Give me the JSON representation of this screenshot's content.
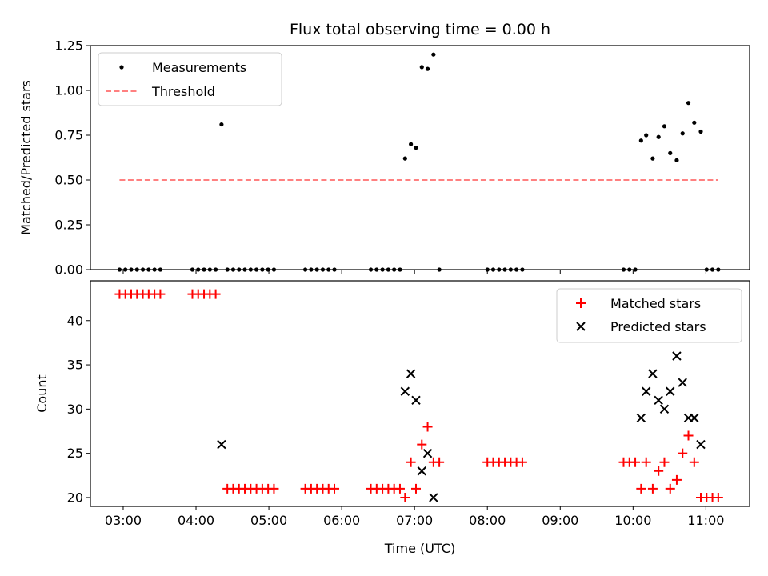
{
  "chart_data": [
    {
      "type": "scatter",
      "title": "Flux total observing time = 0.00 h",
      "xlabel": "",
      "ylabel": "Matched/Predicted stars",
      "xlim": [
        2.55,
        11.6
      ],
      "ylim": [
        0,
        1.25
      ],
      "yticks": [
        0.0,
        0.25,
        0.5,
        0.75,
        1.0,
        1.25
      ],
      "ytick_labels": [
        "0.00",
        "0.25",
        "0.50",
        "0.75",
        "1.00",
        "1.25"
      ],
      "xticks": [
        3,
        4,
        5,
        6,
        7,
        8,
        9,
        10,
        11
      ],
      "legend_position": "upper-left",
      "series": [
        {
          "name": "Measurements",
          "marker": "dot",
          "color": "#000000",
          "x": [
            2.95,
            3.03,
            3.11,
            3.19,
            3.27,
            3.35,
            3.43,
            3.51,
            3.95,
            4.03,
            4.11,
            4.19,
            4.27,
            4.35,
            4.43,
            4.51,
            4.59,
            4.67,
            4.75,
            4.83,
            4.91,
            4.99,
            5.07,
            5.5,
            5.58,
            5.66,
            5.74,
            5.82,
            5.9,
            6.4,
            6.48,
            6.56,
            6.64,
            6.72,
            6.8,
            6.87,
            6.95,
            7.02,
            7.1,
            7.18,
            7.26,
            7.34,
            8.0,
            8.08,
            8.16,
            8.24,
            8.32,
            8.4,
            8.48,
            9.87,
            9.95,
            10.03,
            10.11,
            10.18,
            10.27,
            10.35,
            10.43,
            10.51,
            10.6,
            10.68,
            10.76,
            10.84,
            10.93,
            11.01,
            11.09,
            11.17
          ],
          "y": [
            0,
            0,
            0,
            0,
            0,
            0,
            0,
            0,
            0,
            0,
            0,
            0,
            0,
            0.81,
            0,
            0,
            0,
            0,
            0,
            0,
            0,
            0,
            0,
            0,
            0,
            0,
            0,
            0,
            0,
            0,
            0,
            0,
            0,
            0,
            0,
            0.62,
            0.7,
            0.68,
            1.13,
            1.12,
            1.2,
            0,
            0,
            0,
            0,
            0,
            0,
            0,
            0,
            0,
            0,
            0,
            0.72,
            0.75,
            0.62,
            0.74,
            0.8,
            0.65,
            0.61,
            0.76,
            0.93,
            0.82,
            0.77,
            0,
            0,
            0
          ]
        },
        {
          "name": "Threshold",
          "line": "dashed",
          "color": "#ff8080",
          "x": [
            2.95,
            11.17
          ],
          "y": [
            0.5,
            0.5
          ]
        }
      ]
    },
    {
      "type": "scatter",
      "title": "",
      "xlabel": "Time (UTC)",
      "ylabel": "Count",
      "xlim": [
        2.55,
        11.6
      ],
      "ylim": [
        19,
        44.5
      ],
      "yticks": [
        20,
        25,
        30,
        35,
        40
      ],
      "xticks": [
        3,
        4,
        5,
        6,
        7,
        8,
        9,
        10,
        11
      ],
      "xtick_labels": [
        "03:00",
        "04:00",
        "05:00",
        "06:00",
        "07:00",
        "08:00",
        "09:00",
        "10:00",
        "11:00"
      ],
      "legend_position": "upper-right",
      "series": [
        {
          "name": "Matched stars",
          "marker": "plus",
          "color": "#ff0000",
          "x": [
            2.95,
            3.03,
            3.11,
            3.19,
            3.27,
            3.35,
            3.43,
            3.51,
            3.95,
            4.03,
            4.11,
            4.19,
            4.27,
            4.43,
            4.51,
            4.59,
            4.67,
            4.75,
            4.83,
            4.91,
            4.99,
            5.07,
            5.5,
            5.58,
            5.66,
            5.74,
            5.82,
            5.9,
            6.4,
            6.48,
            6.56,
            6.64,
            6.72,
            6.8,
            6.87,
            6.95,
            7.02,
            7.1,
            7.18,
            7.26,
            7.34,
            8.0,
            8.08,
            8.16,
            8.24,
            8.32,
            8.4,
            8.48,
            9.87,
            9.95,
            10.03,
            10.11,
            10.18,
            10.27,
            10.35,
            10.43,
            10.51,
            10.6,
            10.68,
            10.76,
            10.84,
            10.93,
            11.01,
            11.09,
            11.17
          ],
          "y": [
            43,
            43,
            43,
            43,
            43,
            43,
            43,
            43,
            43,
            43,
            43,
            43,
            43,
            21,
            21,
            21,
            21,
            21,
            21,
            21,
            21,
            21,
            21,
            21,
            21,
            21,
            21,
            21,
            21,
            21,
            21,
            21,
            21,
            21,
            20,
            24,
            21,
            26,
            28,
            24,
            24,
            24,
            24,
            24,
            24,
            24,
            24,
            24,
            24,
            24,
            24,
            21,
            24,
            21,
            23,
            24,
            21,
            22,
            25,
            27,
            24,
            20,
            20,
            20,
            20
          ]
        },
        {
          "name": "Predicted stars",
          "marker": "x",
          "color": "#000000",
          "x": [
            4.35,
            6.87,
            6.95,
            7.02,
            7.1,
            7.18,
            7.26,
            10.11,
            10.18,
            10.27,
            10.35,
            10.43,
            10.51,
            10.6,
            10.68,
            10.76,
            10.84,
            10.93
          ],
          "y": [
            26,
            32,
            34,
            31,
            23,
            25,
            20,
            29,
            32,
            34,
            31,
            30,
            32,
            36,
            33,
            29,
            29,
            26
          ]
        }
      ]
    }
  ]
}
